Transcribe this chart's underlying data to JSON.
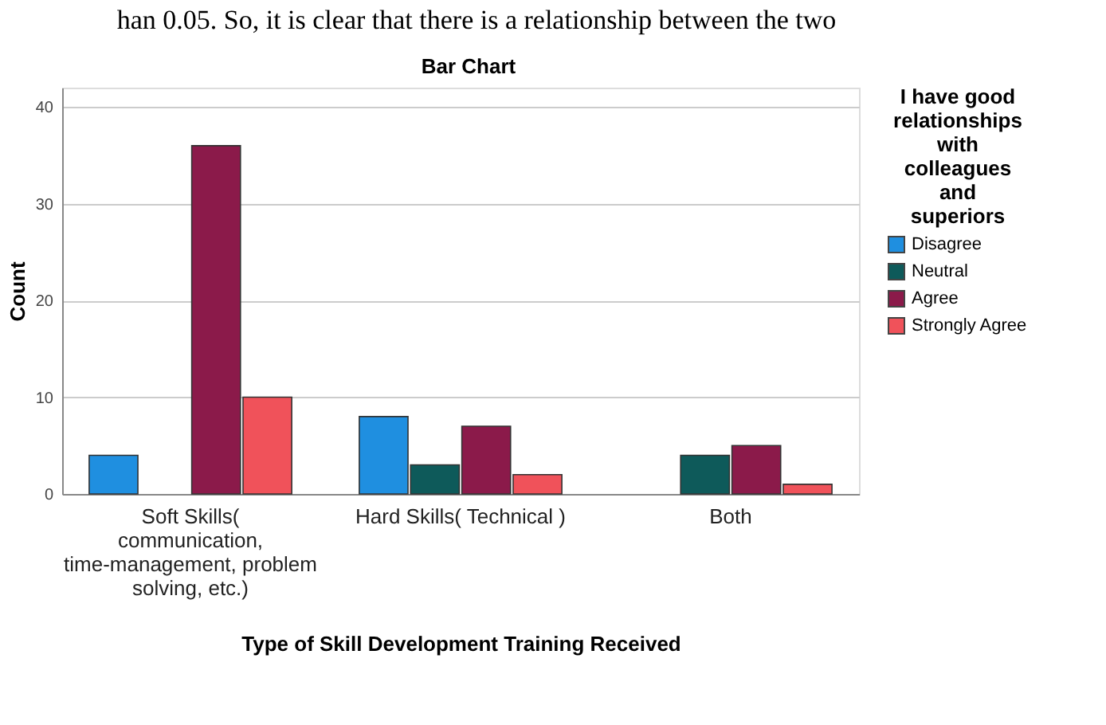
{
  "chart_data": {
    "type": "bar",
    "title": "Bar Chart",
    "annotations": [
      "han 0.05. So, it is clear that there is a relationship between the two"
    ],
    "xlabel": "Type of Skill Development Training Received",
    "ylabel": "Count",
    "legend_title": "I have good relationships with colleagues and superiors",
    "categories": [
      "Soft Skills( communication, time-management, problem solving, etc.)",
      "Hard Skills( Technical )",
      "Both"
    ],
    "series": [
      {
        "name": "Disagree",
        "color": "#1f8fe0",
        "values": [
          4,
          8,
          null
        ]
      },
      {
        "name": "Neutral",
        "color": "#0e5a5a",
        "values": [
          null,
          3,
          4
        ]
      },
      {
        "name": "Agree",
        "color": "#8b1a4a",
        "values": [
          36,
          7,
          5
        ]
      },
      {
        "name": "Strongly Agree",
        "color": "#f0525a",
        "values": [
          10,
          2,
          1
        ]
      }
    ],
    "ylim": [
      0,
      42
    ],
    "yticks": [
      0,
      10,
      20,
      30,
      40
    ],
    "grid": "y",
    "legend": "right"
  }
}
